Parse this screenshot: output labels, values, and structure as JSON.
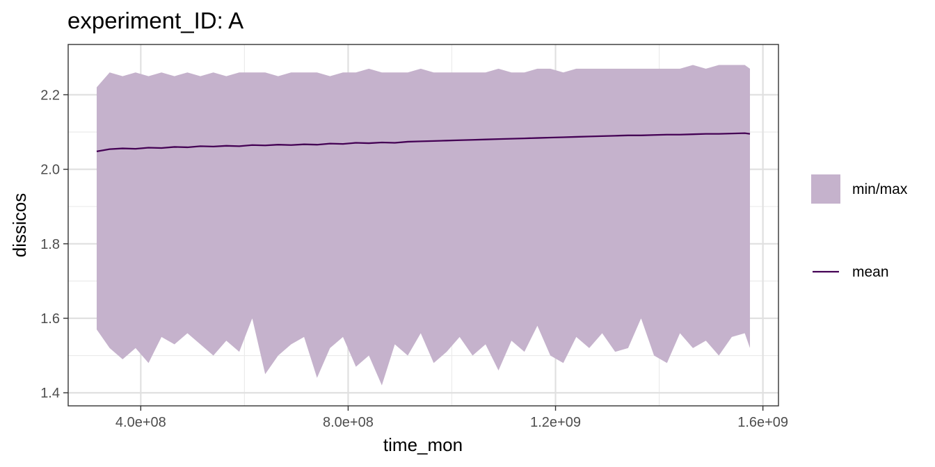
{
  "chart_data": {
    "type": "area",
    "title": "experiment_ID: A",
    "xlabel": "time_mon",
    "ylabel": "dissicos",
    "xlim": [
      260000000,
      1630000000
    ],
    "ylim": [
      1.365,
      2.335
    ],
    "x_ticks": [
      {
        "value": 400000000,
        "label": "4.0e+08"
      },
      {
        "value": 800000000,
        "label": "8.0e+08"
      },
      {
        "value": 1200000000,
        "label": "1.2e+09"
      },
      {
        "value": 1600000000,
        "label": "1.6e+09"
      }
    ],
    "y_ticks": [
      {
        "value": 1.4,
        "label": "1.4"
      },
      {
        "value": 1.6,
        "label": "1.6"
      },
      {
        "value": 1.8,
        "label": "1.8"
      },
      {
        "value": 2.0,
        "label": "2.0"
      },
      {
        "value": 2.2,
        "label": "2.2"
      }
    ],
    "grid": true,
    "legend_position": "right",
    "x": [
      315000000,
      340000000,
      365000000,
      390000000,
      415000000,
      440000000,
      465000000,
      490000000,
      515000000,
      540000000,
      565000000,
      590000000,
      615000000,
      640000000,
      665000000,
      690000000,
      715000000,
      740000000,
      765000000,
      790000000,
      815000000,
      840000000,
      865000000,
      890000000,
      915000000,
      940000000,
      965000000,
      990000000,
      1015000000,
      1040000000,
      1065000000,
      1090000000,
      1115000000,
      1140000000,
      1165000000,
      1190000000,
      1215000000,
      1240000000,
      1265000000,
      1290000000,
      1315000000,
      1340000000,
      1365000000,
      1390000000,
      1415000000,
      1440000000,
      1465000000,
      1490000000,
      1515000000,
      1540000000,
      1565000000,
      1575000000
    ],
    "series": [
      {
        "name": "min/max",
        "color": "#c5b2cc",
        "upper": [
          2.22,
          2.26,
          2.25,
          2.26,
          2.25,
          2.26,
          2.25,
          2.26,
          2.25,
          2.26,
          2.25,
          2.26,
          2.26,
          2.26,
          2.25,
          2.26,
          2.26,
          2.26,
          2.25,
          2.26,
          2.26,
          2.27,
          2.26,
          2.26,
          2.26,
          2.27,
          2.26,
          2.26,
          2.26,
          2.26,
          2.26,
          2.27,
          2.26,
          2.26,
          2.27,
          2.27,
          2.26,
          2.27,
          2.27,
          2.27,
          2.27,
          2.27,
          2.27,
          2.27,
          2.27,
          2.27,
          2.28,
          2.27,
          2.28,
          2.28,
          2.28,
          2.27
        ],
        "lower": [
          1.57,
          1.52,
          1.49,
          1.52,
          1.48,
          1.55,
          1.53,
          1.56,
          1.53,
          1.5,
          1.54,
          1.51,
          1.6,
          1.45,
          1.5,
          1.53,
          1.55,
          1.44,
          1.52,
          1.55,
          1.47,
          1.5,
          1.42,
          1.53,
          1.5,
          1.56,
          1.48,
          1.51,
          1.55,
          1.5,
          1.53,
          1.46,
          1.54,
          1.51,
          1.58,
          1.5,
          1.48,
          1.55,
          1.52,
          1.56,
          1.51,
          1.52,
          1.6,
          1.5,
          1.48,
          1.56,
          1.52,
          1.54,
          1.5,
          1.55,
          1.56,
          1.52
        ]
      },
      {
        "name": "mean",
        "color": "#440154",
        "values": [
          2.048,
          2.054,
          2.056,
          2.055,
          2.058,
          2.057,
          2.06,
          2.059,
          2.062,
          2.061,
          2.063,
          2.062,
          2.065,
          2.064,
          2.066,
          2.065,
          2.067,
          2.066,
          2.069,
          2.068,
          2.071,
          2.07,
          2.072,
          2.071,
          2.074,
          2.075,
          2.076,
          2.077,
          2.078,
          2.079,
          2.08,
          2.081,
          2.082,
          2.083,
          2.084,
          2.085,
          2.086,
          2.087,
          2.088,
          2.089,
          2.09,
          2.091,
          2.091,
          2.092,
          2.093,
          2.093,
          2.094,
          2.095,
          2.095,
          2.096,
          2.097,
          2.095
        ]
      }
    ]
  }
}
